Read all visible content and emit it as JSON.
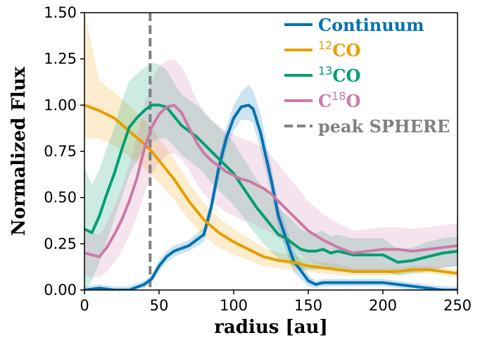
{
  "chart_data": {
    "type": "line",
    "xlabel": "radius [au]",
    "ylabel": "Normalized Flux",
    "xlim": [
      0,
      250
    ],
    "ylim": [
      0,
      1.5
    ],
    "x_ticks": [
      "0",
      "50",
      "100",
      "150",
      "200",
      "250"
    ],
    "y_ticks": [
      "0.00",
      "0.25",
      "0.50",
      "0.75",
      "1.00",
      "1.25",
      "1.50"
    ],
    "grid": false,
    "legend_position": "top-right",
    "colors": {
      "continuum": "#0072b2",
      "co12": "#e69f00",
      "co13": "#009e73",
      "c18o": "#cc79a7",
      "sphere": "#808080"
    },
    "vline": {
      "name": "peak SPHERE",
      "x": 44
    },
    "legend": [
      {
        "key": "continuum",
        "base": "Continuum",
        "sup": "",
        "tail": "",
        "style": "solid"
      },
      {
        "key": "co12",
        "base": "",
        "sup": "12",
        "tail": "CO",
        "style": "solid"
      },
      {
        "key": "co13",
        "base": "",
        "sup": "13",
        "tail": "CO",
        "style": "solid"
      },
      {
        "key": "c18o",
        "base": "C",
        "sup": "18",
        "tail": "O",
        "style": "solid"
      },
      {
        "key": "sphere",
        "base": "peak SPHERE",
        "sup": "",
        "tail": "",
        "style": "dashed"
      }
    ],
    "series": [
      {
        "key": "continuum",
        "x": [
          0,
          10,
          20,
          30,
          40,
          45,
          50,
          55,
          60,
          70,
          80,
          85,
          90,
          95,
          100,
          105,
          110,
          113,
          118,
          125,
          130,
          140,
          150,
          155,
          160,
          170,
          180,
          190,
          200,
          210,
          220,
          230,
          240,
          250
        ],
        "y": [
          0.0,
          0.01,
          0.0,
          0.0,
          0.03,
          0.06,
          0.13,
          0.18,
          0.21,
          0.24,
          0.3,
          0.45,
          0.66,
          0.82,
          0.93,
          0.99,
          1.0,
          0.98,
          0.85,
          0.6,
          0.4,
          0.16,
          0.05,
          0.03,
          0.04,
          0.04,
          0.04,
          0.04,
          0.04,
          0.03,
          0.02,
          0.01,
          0.0,
          0.0
        ],
        "lower": [
          0.0,
          0.0,
          0.0,
          0.0,
          0.01,
          0.04,
          0.1,
          0.15,
          0.18,
          0.21,
          0.26,
          0.4,
          0.6,
          0.76,
          0.86,
          0.92,
          0.92,
          0.9,
          0.76,
          0.52,
          0.33,
          0.1,
          0.02,
          0.01,
          0.02,
          0.02,
          0.02,
          0.02,
          0.02,
          0.01,
          0.0,
          0.0,
          0.0,
          0.0
        ],
        "upper": [
          0.02,
          0.03,
          0.02,
          0.02,
          0.05,
          0.08,
          0.16,
          0.21,
          0.24,
          0.27,
          0.34,
          0.5,
          0.72,
          0.88,
          1.0,
          1.07,
          1.11,
          1.08,
          0.95,
          0.68,
          0.47,
          0.22,
          0.08,
          0.05,
          0.06,
          0.06,
          0.06,
          0.06,
          0.06,
          0.05,
          0.04,
          0.03,
          0.02,
          0.02
        ]
      },
      {
        "key": "co12",
        "x": [
          0,
          10,
          20,
          30,
          40,
          45,
          50,
          60,
          70,
          80,
          90,
          100,
          110,
          120,
          130,
          140,
          150,
          160,
          170,
          180,
          190,
          200,
          210,
          220,
          230,
          240,
          250
        ],
        "y": [
          1.0,
          0.97,
          0.93,
          0.86,
          0.79,
          0.75,
          0.7,
          0.6,
          0.48,
          0.38,
          0.31,
          0.26,
          0.22,
          0.18,
          0.16,
          0.15,
          0.13,
          0.12,
          0.11,
          0.1,
          0.1,
          0.1,
          0.1,
          0.11,
          0.11,
          0.1,
          0.09
        ],
        "lower": [
          0.82,
          0.82,
          0.78,
          0.72,
          0.66,
          0.62,
          0.58,
          0.49,
          0.38,
          0.29,
          0.23,
          0.19,
          0.16,
          0.13,
          0.12,
          0.11,
          0.1,
          0.09,
          0.08,
          0.08,
          0.08,
          0.08,
          0.08,
          0.09,
          0.09,
          0.08,
          0.07
        ],
        "upper": [
          1.5,
          1.13,
          1.07,
          1.0,
          0.92,
          0.88,
          0.82,
          0.71,
          0.58,
          0.47,
          0.39,
          0.33,
          0.28,
          0.23,
          0.2,
          0.19,
          0.16,
          0.15,
          0.14,
          0.12,
          0.12,
          0.12,
          0.12,
          0.13,
          0.13,
          0.12,
          0.11
        ]
      },
      {
        "key": "co13",
        "x": [
          0,
          5,
          10,
          15,
          20,
          25,
          30,
          35,
          40,
          45,
          50,
          55,
          60,
          65,
          70,
          75,
          80,
          85,
          90,
          95,
          100,
          105,
          110,
          115,
          120,
          125,
          130,
          135,
          140,
          145,
          150,
          155,
          160,
          165,
          170,
          180,
          190,
          200,
          210,
          220,
          230,
          240,
          250
        ],
        "y": [
          0.33,
          0.31,
          0.4,
          0.52,
          0.63,
          0.76,
          0.88,
          0.93,
          0.97,
          1.0,
          1.0,
          0.99,
          0.94,
          0.89,
          0.86,
          0.83,
          0.79,
          0.75,
          0.71,
          0.67,
          0.63,
          0.57,
          0.51,
          0.45,
          0.4,
          0.35,
          0.3,
          0.28,
          0.25,
          0.22,
          0.21,
          0.21,
          0.22,
          0.2,
          0.21,
          0.19,
          0.19,
          0.19,
          0.15,
          0.16,
          0.18,
          0.2,
          0.21
        ],
        "lower": [
          0.0,
          0.05,
          0.15,
          0.27,
          0.38,
          0.5,
          0.62,
          0.7,
          0.76,
          0.8,
          0.82,
          0.82,
          0.78,
          0.73,
          0.7,
          0.67,
          0.63,
          0.58,
          0.54,
          0.5,
          0.46,
          0.41,
          0.35,
          0.3,
          0.25,
          0.21,
          0.17,
          0.15,
          0.13,
          0.11,
          0.11,
          0.11,
          0.12,
          0.11,
          0.12,
          0.1,
          0.1,
          0.1,
          0.08,
          0.09,
          0.1,
          0.12,
          0.13
        ],
        "upper": [
          0.66,
          0.57,
          0.65,
          0.77,
          0.88,
          1.02,
          1.13,
          1.17,
          1.2,
          1.23,
          1.22,
          1.19,
          1.12,
          1.06,
          1.03,
          1.0,
          0.96,
          0.92,
          0.88,
          0.84,
          0.8,
          0.73,
          0.67,
          0.6,
          0.55,
          0.5,
          0.44,
          0.41,
          0.37,
          0.33,
          0.31,
          0.31,
          0.32,
          0.29,
          0.3,
          0.28,
          0.28,
          0.28,
          0.22,
          0.23,
          0.26,
          0.28,
          0.29
        ]
      },
      {
        "key": "c18o",
        "x": [
          0,
          5,
          10,
          15,
          20,
          25,
          30,
          35,
          40,
          45,
          50,
          55,
          60,
          65,
          70,
          75,
          80,
          85,
          90,
          95,
          100,
          105,
          110,
          115,
          120,
          125,
          130,
          135,
          140,
          145,
          150,
          160,
          170,
          180,
          190,
          200,
          210,
          220,
          230,
          240,
          250
        ],
        "y": [
          0.2,
          0.19,
          0.18,
          0.23,
          0.3,
          0.38,
          0.48,
          0.6,
          0.76,
          0.88,
          0.95,
          0.99,
          1.0,
          0.96,
          0.88,
          0.8,
          0.74,
          0.7,
          0.67,
          0.64,
          0.62,
          0.6,
          0.59,
          0.57,
          0.55,
          0.52,
          0.48,
          0.44,
          0.4,
          0.36,
          0.32,
          0.27,
          0.23,
          0.2,
          0.21,
          0.22,
          0.22,
          0.21,
          0.22,
          0.23,
          0.24
        ],
        "lower": [
          0.08,
          0.07,
          0.07,
          0.1,
          0.15,
          0.21,
          0.29,
          0.39,
          0.52,
          0.62,
          0.69,
          0.73,
          0.74,
          0.71,
          0.65,
          0.58,
          0.52,
          0.48,
          0.45,
          0.42,
          0.4,
          0.38,
          0.37,
          0.35,
          0.33,
          0.31,
          0.28,
          0.25,
          0.22,
          0.19,
          0.16,
          0.13,
          0.11,
          0.09,
          0.1,
          0.11,
          0.11,
          0.1,
          0.11,
          0.12,
          0.13
        ],
        "upper": [
          0.33,
          0.31,
          0.3,
          0.36,
          0.45,
          0.55,
          0.68,
          0.82,
          1.0,
          1.13,
          1.21,
          1.24,
          1.25,
          1.21,
          1.13,
          1.03,
          0.97,
          0.92,
          0.89,
          0.86,
          0.84,
          0.82,
          0.81,
          0.79,
          0.77,
          0.73,
          0.68,
          0.63,
          0.58,
          0.53,
          0.48,
          0.41,
          0.36,
          0.32,
          0.33,
          0.34,
          0.34,
          0.33,
          0.34,
          0.35,
          0.36
        ]
      }
    ]
  }
}
